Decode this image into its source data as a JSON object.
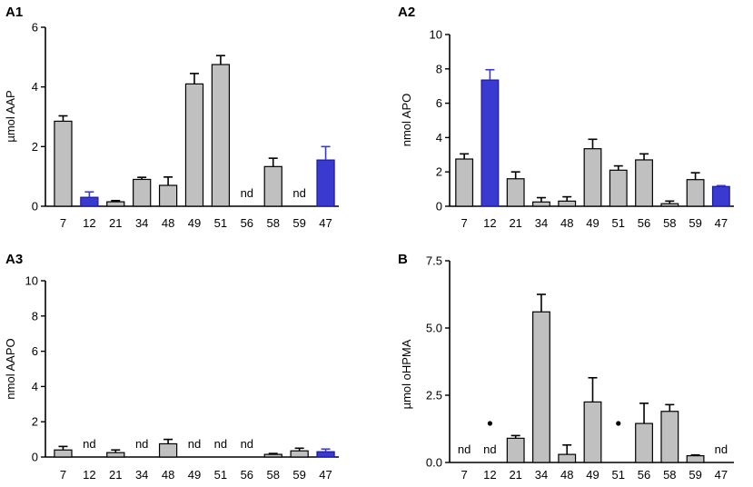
{
  "colors": {
    "bar_default": "#c0c0c0",
    "bar_highlight": "#3a3ad0",
    "edge_default": "#000000",
    "edge_highlight": "#1a1aa0",
    "axis": "#000000"
  },
  "chart_data": [
    {
      "panel": "A1",
      "type": "bar",
      "ylabel": "µmol AAP",
      "ylim": [
        0,
        6
      ],
      "yticks": [
        "0",
        "2",
        "4",
        "6"
      ],
      "ytick_values": [
        0,
        2,
        4,
        6
      ],
      "categories": [
        "7",
        "12",
        "21",
        "34",
        "48",
        "49",
        "51",
        "56",
        "58",
        "59",
        "47"
      ],
      "values": [
        2.85,
        0.3,
        0.15,
        0.9,
        0.7,
        4.1,
        4.75,
        null,
        1.33,
        null,
        1.55
      ],
      "errors": [
        0.18,
        0.18,
        0.04,
        0.07,
        0.28,
        0.35,
        0.3,
        null,
        0.28,
        null,
        0.45
      ],
      "highlight": [
        "12",
        "47"
      ],
      "annotations": {
        "nd": [
          "56",
          "59"
        ],
        "dot": []
      }
    },
    {
      "panel": "A2",
      "type": "bar",
      "ylabel": "nmol APO",
      "ylim": [
        0,
        10
      ],
      "yticks": [
        "0",
        "2",
        "4",
        "6",
        "8",
        "10"
      ],
      "ytick_values": [
        0,
        2,
        4,
        6,
        8,
        10
      ],
      "categories": [
        "7",
        "12",
        "21",
        "34",
        "48",
        "49",
        "51",
        "56",
        "58",
        "59",
        "47"
      ],
      "values": [
        2.75,
        7.35,
        1.6,
        0.25,
        0.3,
        3.35,
        2.1,
        2.7,
        0.15,
        1.55,
        1.15
      ],
      "errors": [
        0.3,
        0.6,
        0.4,
        0.25,
        0.25,
        0.55,
        0.25,
        0.35,
        0.15,
        0.4,
        0.05
      ],
      "highlight": [
        "12",
        "47"
      ],
      "annotations": {
        "nd": [],
        "dot": []
      }
    },
    {
      "panel": "A3",
      "type": "bar",
      "ylabel": "nmol AAPO",
      "ylim": [
        0,
        10
      ],
      "yticks": [
        "0",
        "2",
        "4",
        "6",
        "8",
        "10"
      ],
      "ytick_values": [
        0,
        2,
        4,
        6,
        8,
        10
      ],
      "categories": [
        "7",
        "12",
        "21",
        "34",
        "48",
        "49",
        "51",
        "56",
        "58",
        "59",
        "47"
      ],
      "values": [
        0.4,
        null,
        0.25,
        null,
        0.75,
        null,
        null,
        null,
        0.15,
        0.35,
        0.3
      ],
      "errors": [
        0.2,
        null,
        0.15,
        null,
        0.25,
        null,
        null,
        null,
        0.05,
        0.15,
        0.15
      ],
      "highlight": [
        "47"
      ],
      "annotations": {
        "nd": [
          "12",
          "34",
          "49",
          "51",
          "56"
        ],
        "dot": []
      }
    },
    {
      "panel": "B",
      "type": "bar",
      "ylabel": "µmol oHPMA",
      "ylim": [
        0,
        7.5
      ],
      "yticks": [
        "0.0",
        "2.5",
        "5.0",
        "7.5"
      ],
      "ytick_values": [
        0,
        2.5,
        5,
        7.5
      ],
      "categories": [
        "7",
        "12",
        "21",
        "34",
        "48",
        "49",
        "51",
        "56",
        "58",
        "59",
        "47"
      ],
      "values": [
        null,
        null,
        0.9,
        5.6,
        0.3,
        2.25,
        null,
        1.45,
        1.9,
        0.25,
        null
      ],
      "errors": [
        null,
        null,
        0.1,
        0.65,
        0.35,
        0.9,
        null,
        0.75,
        0.25,
        0.03,
        null
      ],
      "highlight": [],
      "annotations": {
        "nd": [
          "7",
          "12",
          "47"
        ],
        "dot": [
          "12",
          "51"
        ]
      }
    }
  ]
}
